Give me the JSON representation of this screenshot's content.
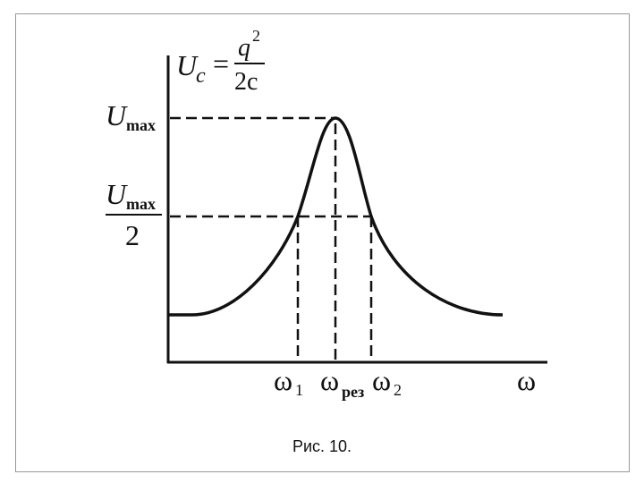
{
  "y_axis_label": {
    "symbol": "U",
    "subscript": "c",
    "equals": "=",
    "numerator": "q",
    "numerator_power": "2",
    "denominator": "2c"
  },
  "y_levels": {
    "max": {
      "symbol": "U",
      "subscript": "max"
    },
    "half": {
      "symbol": "U",
      "subscript": "max",
      "denominator": "2"
    }
  },
  "x_labels": [
    {
      "symbol": "ω",
      "subscript": "1"
    },
    {
      "symbol": "ω",
      "subscript": "рез"
    },
    {
      "symbol": "ω",
      "subscript": "2"
    }
  ],
  "x_axis_label": "ω",
  "caption": "Рис. 10."
}
